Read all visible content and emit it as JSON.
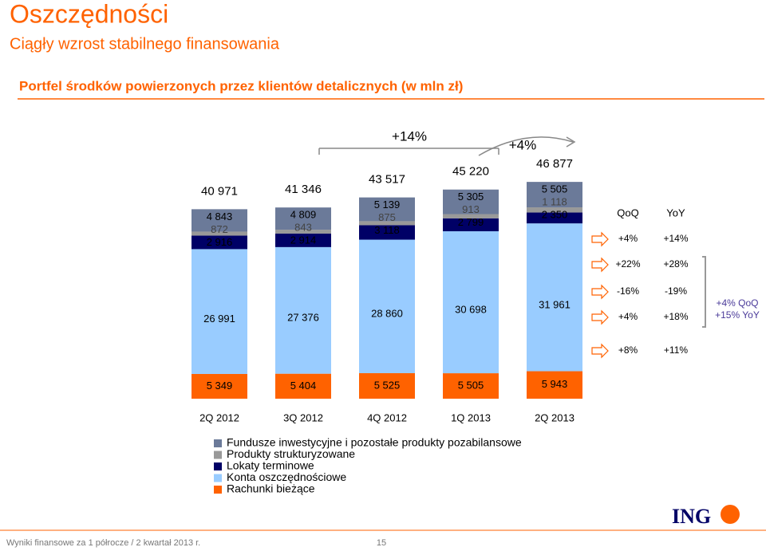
{
  "header": {
    "title": "Oszczędności",
    "subtitle": "Ciągły wzrost stabilnego finansowania"
  },
  "chart_data": {
    "type": "bar",
    "stacked": true,
    "title": "Portfel środków powierzonych przez klientów detalicznych (w mln zł)",
    "categories": [
      "2Q 2012",
      "3Q 2012",
      "4Q 2012",
      "1Q 2013",
      "2Q 2013"
    ],
    "series": [
      {
        "name": "Rachunki bieżące",
        "color": "#ff6200",
        "values": [
          5349,
          5404,
          5525,
          5505,
          5943
        ],
        "value_labels": [
          "5 349",
          "5 404",
          "5 525",
          "5 505",
          "5 943"
        ]
      },
      {
        "name": "Konta oszczędnościowe",
        "color": "#99ccff",
        "values": [
          26991,
          27376,
          28860,
          30698,
          31961
        ],
        "value_labels": [
          "26 991",
          "27 376",
          "28 860",
          "30 698",
          "31 961"
        ]
      },
      {
        "name": "Lokaty terminowe",
        "color": "#000066",
        "values": [
          2916,
          2914,
          3118,
          2799,
          2350
        ],
        "value_labels": [
          "2 916",
          "2 914",
          "3 118",
          "2 799",
          "2 350"
        ]
      },
      {
        "name": "Produkty strukturyzowane",
        "color": "#999999",
        "values": [
          872,
          843,
          875,
          913,
          1118
        ],
        "value_labels": [
          "872",
          "843",
          "875",
          "913",
          "1 118"
        ]
      },
      {
        "name": "Fundusze inwestycyjne i pozostałe produkty pozabilansowe",
        "color": "#6b7a99",
        "values": [
          4843,
          4809,
          5139,
          5305,
          5505
        ],
        "value_labels": [
          "4 843",
          "4 809",
          "5 139",
          "5 305",
          "5 505"
        ]
      }
    ],
    "totals": {
      "values": [
        40971,
        41346,
        43517,
        45220,
        46877
      ],
      "value_labels": [
        "40 971",
        "41 346",
        "43 517",
        "45 220",
        "46 877"
      ]
    },
    "annotations": [
      "+14%",
      "+4%"
    ],
    "growth": {
      "headers": [
        "QoQ",
        "YoY"
      ],
      "rows": [
        [
          "+4%",
          "+14%"
        ],
        [
          "+22%",
          "+28%"
        ],
        [
          "-16%",
          "-19%"
        ],
        [
          "+4%",
          "+18%"
        ],
        [
          "+8%",
          "+11%"
        ]
      ]
    },
    "savings_growth": [
      "+4% QoQ",
      "+15% YoY"
    ]
  },
  "footer": {
    "text": "Wyniki finansowe za 1 półrocze / 2 kwartał 2013 r.",
    "page": "15",
    "logo": "ING"
  }
}
